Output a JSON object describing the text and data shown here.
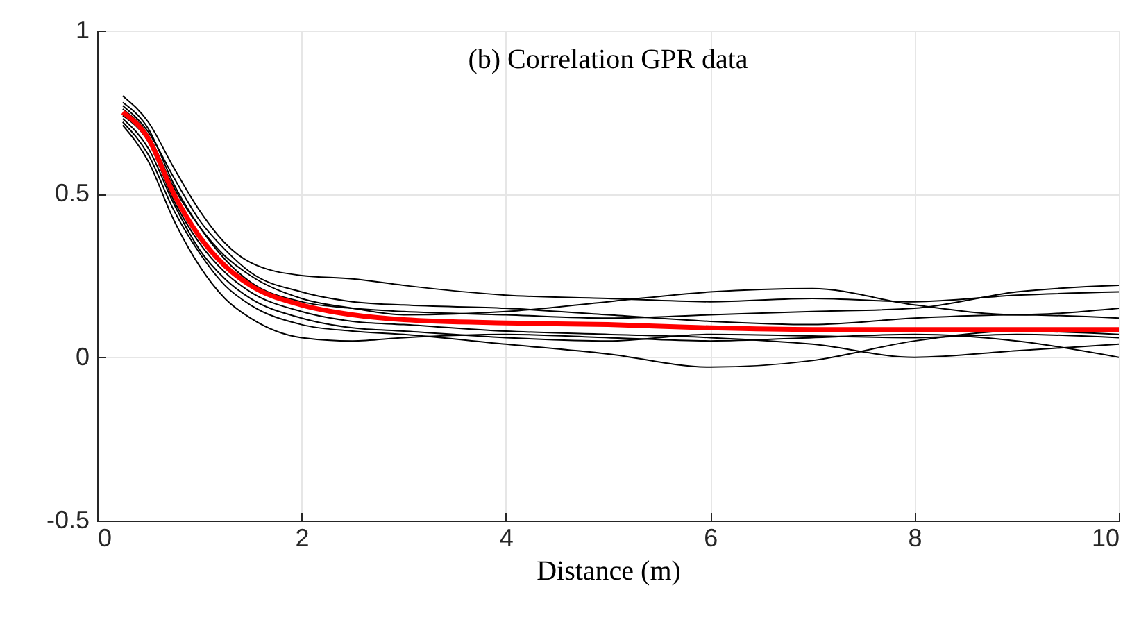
{
  "chart_data": {
    "type": "line",
    "title": "(b) Correlation GPR data",
    "xlabel": "Distance (m)",
    "x": [
      0.25,
      0.5,
      0.75,
      1,
      1.25,
      1.5,
      2,
      2.5,
      3,
      4,
      5,
      6,
      7,
      8,
      9,
      10
    ],
    "series": [
      {
        "color": "#000000",
        "values": [
          0.8,
          0.72,
          0.58,
          0.45,
          0.35,
          0.29,
          0.25,
          0.24,
          0.22,
          0.19,
          0.18,
          0.17,
          0.18,
          0.17,
          0.19,
          0.2
        ]
      },
      {
        "color": "#000000",
        "values": [
          0.72,
          0.62,
          0.45,
          0.32,
          0.22,
          0.16,
          0.1,
          0.08,
          0.07,
          0.04,
          0.01,
          -0.03,
          -0.01,
          0.05,
          0.08,
          0.07
        ]
      },
      {
        "color": "#000000",
        "values": [
          0.76,
          0.68,
          0.52,
          0.4,
          0.31,
          0.25,
          0.18,
          0.15,
          0.13,
          0.14,
          0.17,
          0.2,
          0.21,
          0.16,
          0.13,
          0.15
        ]
      },
      {
        "color": "#000000",
        "values": [
          0.74,
          0.66,
          0.48,
          0.35,
          0.26,
          0.2,
          0.14,
          0.11,
          0.1,
          0.08,
          0.07,
          0.06,
          0.04,
          0.0,
          0.02,
          0.04
        ]
      },
      {
        "color": "#000000",
        "values": [
          0.78,
          0.7,
          0.53,
          0.4,
          0.3,
          0.23,
          0.17,
          0.15,
          0.14,
          0.13,
          0.12,
          0.13,
          0.14,
          0.15,
          0.2,
          0.22
        ]
      },
      {
        "color": "#000000",
        "values": [
          0.71,
          0.6,
          0.42,
          0.28,
          0.18,
          0.12,
          0.06,
          0.05,
          0.06,
          0.07,
          0.06,
          0.05,
          0.06,
          0.07,
          0.05,
          0.0
        ]
      },
      {
        "color": "#000000",
        "values": [
          0.77,
          0.69,
          0.55,
          0.42,
          0.33,
          0.26,
          0.2,
          0.17,
          0.16,
          0.15,
          0.13,
          0.11,
          0.1,
          0.12,
          0.13,
          0.12
        ]
      },
      {
        "color": "#000000",
        "values": [
          0.73,
          0.64,
          0.47,
          0.33,
          0.24,
          0.18,
          0.12,
          0.09,
          0.08,
          0.06,
          0.05,
          0.07,
          0.065,
          0.06,
          0.07,
          0.06
        ]
      },
      {
        "color": "#ff0000",
        "values": [
          0.75,
          0.67,
          0.5,
          0.37,
          0.28,
          0.22,
          0.16,
          0.13,
          0.115,
          0.105,
          0.1,
          0.09,
          0.085,
          0.085,
          0.085,
          0.085
        ]
      }
    ],
    "xlim": [
      0,
      10
    ],
    "xticks": [
      0,
      2,
      4,
      6,
      8,
      10
    ],
    "ylim": [
      -0.5,
      1
    ],
    "yticks": [
      -0.5,
      0,
      0.5,
      1
    ],
    "grid": true,
    "line_style": "solid"
  }
}
